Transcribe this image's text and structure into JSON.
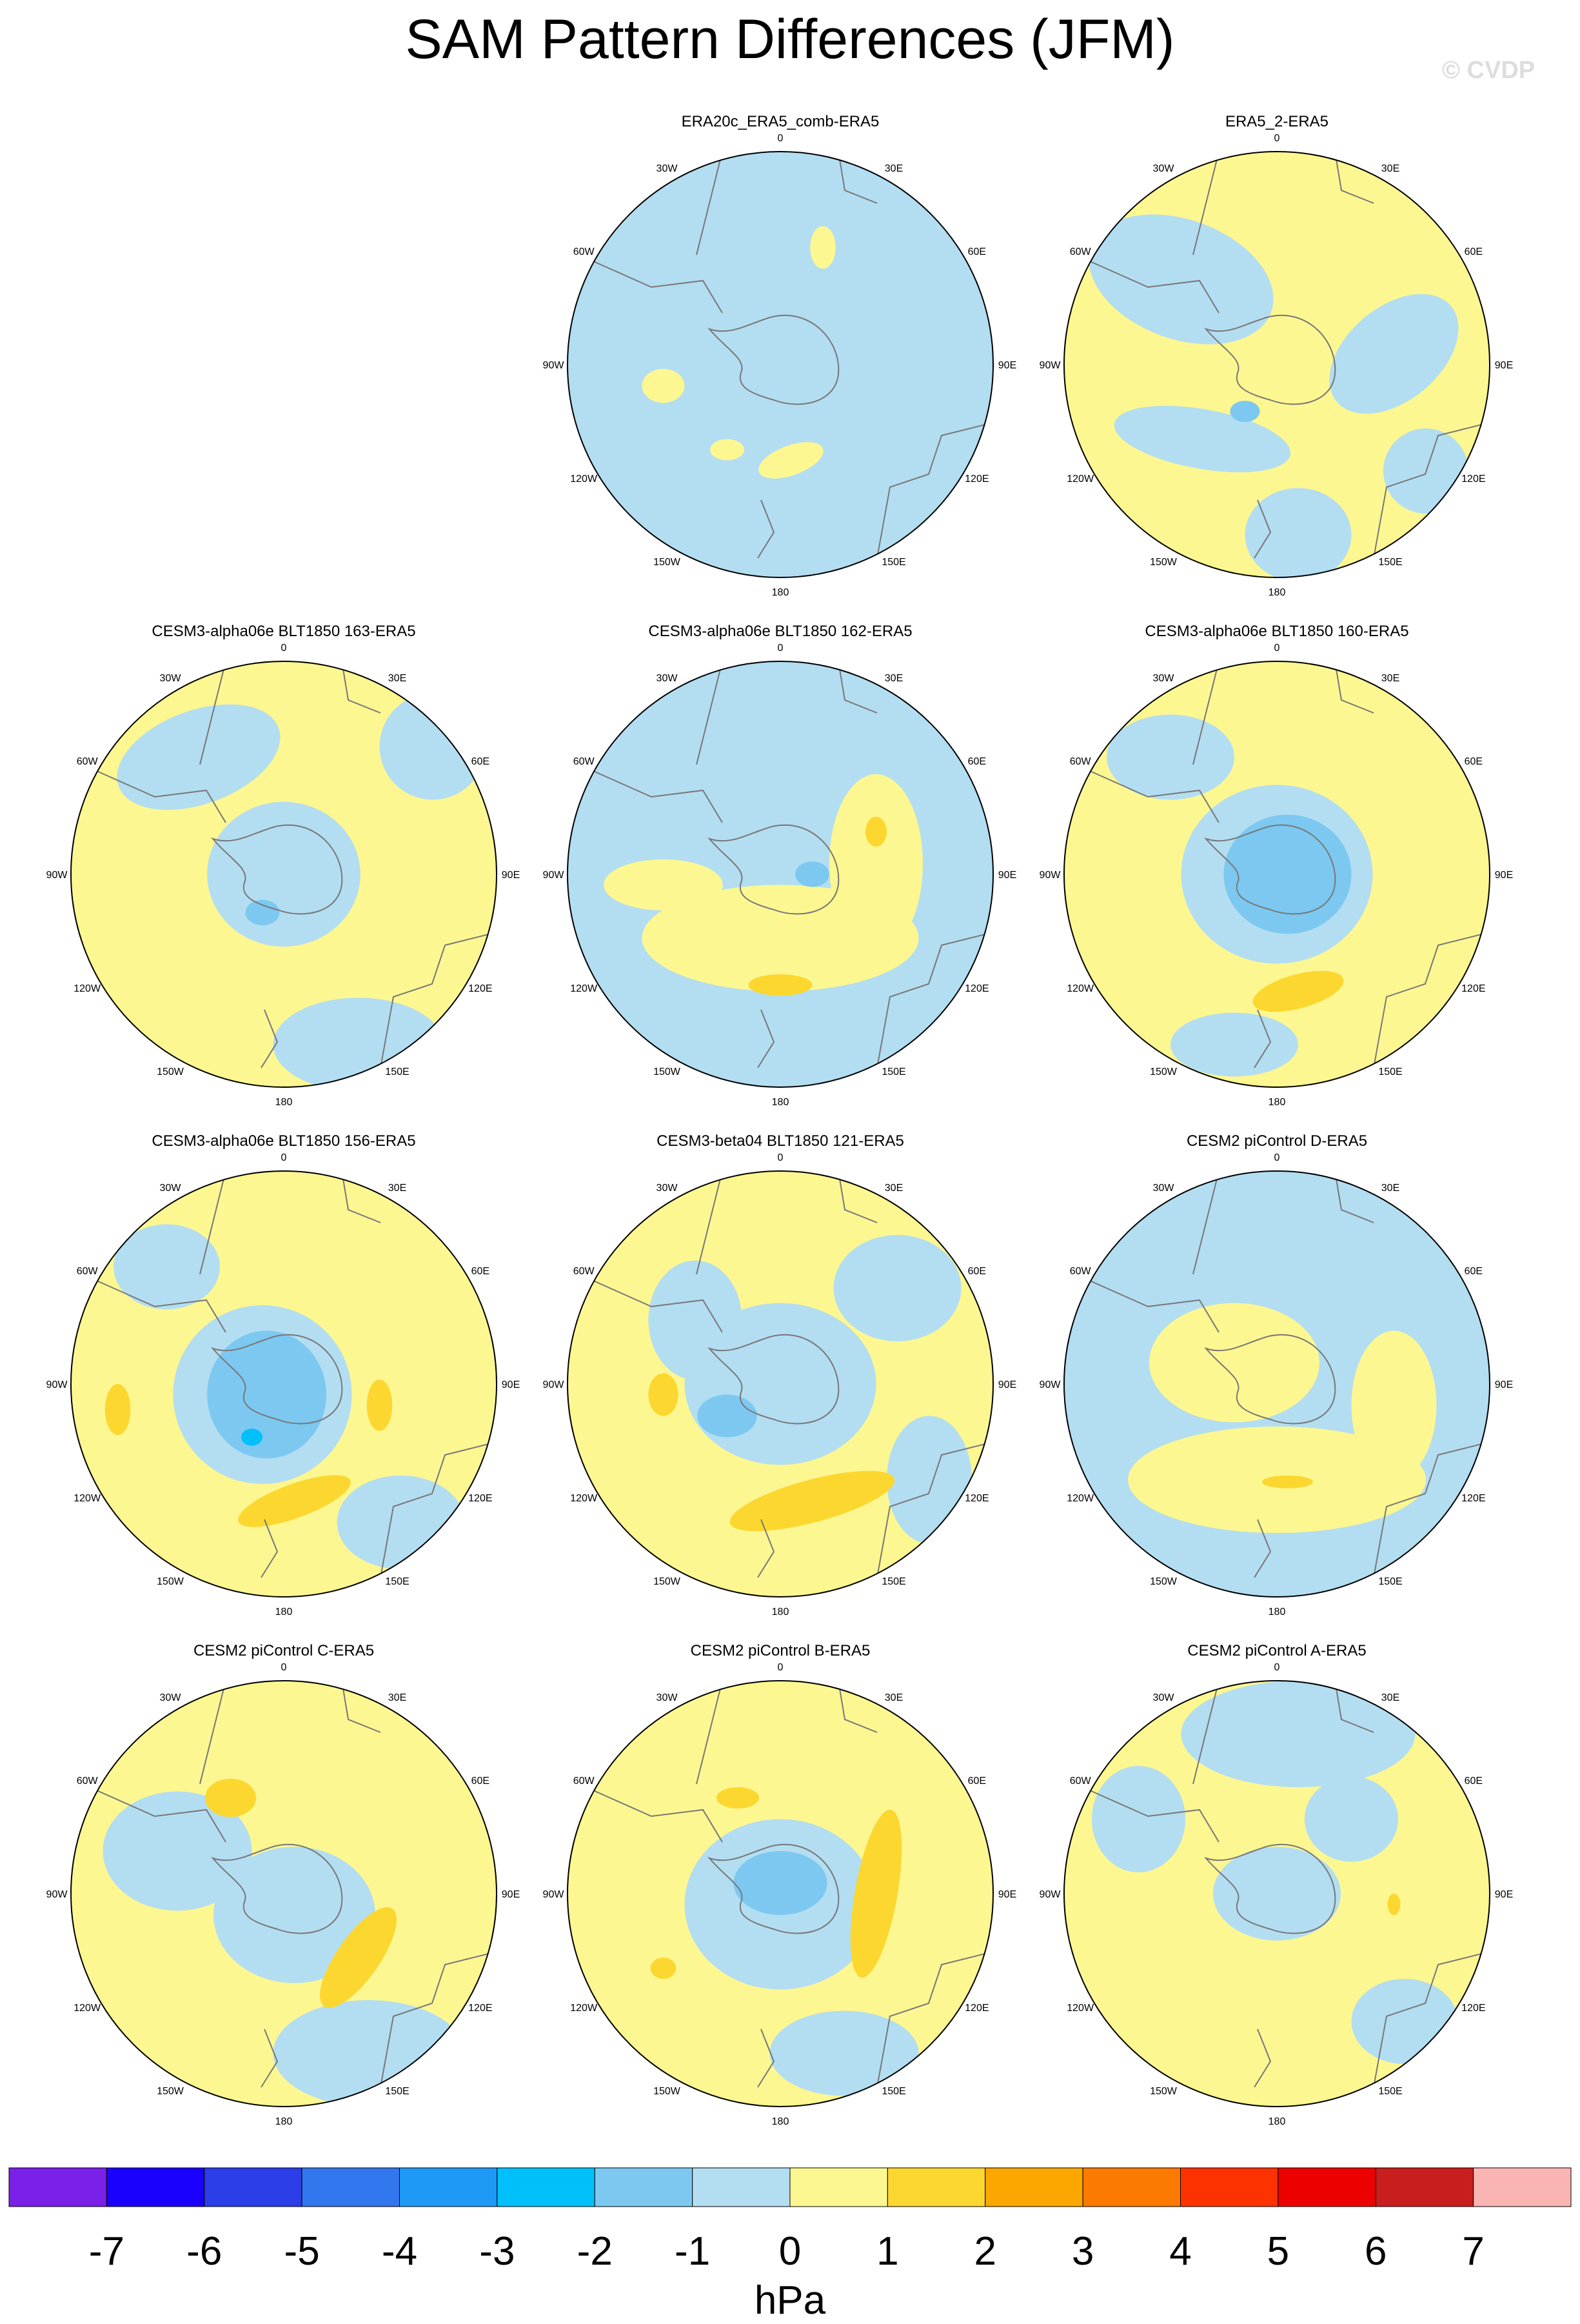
{
  "title": "SAM Pattern Differences (JFM)",
  "watermark": "© CVDP",
  "colors": {
    "ocean_base": "#b3ddf1",
    "coast": "#777777",
    "levels": [
      "#7a20e8",
      "#1a00ff",
      "#2b3ee8",
      "#3377ee",
      "#1e99f5",
      "#00c0fa",
      "#7cc8f0",
      "#b3ddf1",
      "#fdf791",
      "#fcd72f",
      "#fca700",
      "#fc7a00",
      "#fc3300",
      "#ec0000",
      "#c81e1e",
      "#fbb4b4"
    ]
  },
  "colorbar": {
    "labels": [
      "-7",
      "-6",
      "-5",
      "-4",
      "-3",
      "-2",
      "-1",
      "0",
      "1",
      "2",
      "3",
      "4",
      "5",
      "6",
      "7"
    ],
    "units": "hPa"
  },
  "lon_labels": [
    "0",
    "30E",
    "60E",
    "90E",
    "120E",
    "150E",
    "180",
    "150W",
    "120W",
    "90W",
    "60W",
    "30W"
  ],
  "panels": [
    {
      "title": "ERA20c_ERA5_comb-ERA5",
      "base": "blue",
      "blobs": [
        [
          "y",
          0.2,
          -0.55,
          0.06,
          0.1,
          0
        ],
        [
          "y",
          -0.55,
          0.1,
          0.1,
          0.08,
          0
        ],
        [
          "y",
          0.05,
          0.45,
          0.16,
          0.07,
          -20
        ],
        [
          "b",
          -0.05,
          0.2,
          0.16,
          0.07,
          10
        ],
        [
          "y",
          -0.25,
          0.4,
          0.08,
          0.05,
          0
        ]
      ]
    },
    {
      "title": "ERA5_2-ERA5",
      "base": "yellow",
      "blobs": [
        [
          "b",
          -0.45,
          -0.4,
          0.45,
          0.28,
          20
        ],
        [
          "b",
          0.55,
          -0.05,
          0.35,
          0.22,
          -40
        ],
        [
          "b",
          -0.35,
          0.35,
          0.42,
          0.14,
          10
        ],
        [
          "b",
          0.1,
          0.8,
          0.25,
          0.22,
          0
        ],
        [
          "b",
          0.7,
          0.5,
          0.2,
          0.2,
          0
        ],
        [
          "m",
          -0.15,
          0.22,
          0.07,
          0.05,
          0
        ]
      ]
    },
    {
      "title": "CESM3-alpha06e BLT1850 163-ERA5",
      "base": "yellow",
      "blobs": [
        [
          "b",
          0.0,
          0.0,
          0.36,
          0.34,
          0
        ],
        [
          "b",
          -0.4,
          -0.55,
          0.4,
          0.22,
          -20
        ],
        [
          "b",
          0.35,
          0.8,
          0.4,
          0.22,
          0
        ],
        [
          "b",
          0.7,
          -0.6,
          0.25,
          0.25,
          0
        ],
        [
          "m",
          -0.1,
          0.18,
          0.08,
          0.06,
          0
        ]
      ]
    },
    {
      "title": "CESM3-alpha06e BLT1850 162-ERA5",
      "base": "blue",
      "blobs": [
        [
          "y",
          0.0,
          0.3,
          0.65,
          0.25,
          0
        ],
        [
          "y",
          0.45,
          -0.05,
          0.22,
          0.42,
          0
        ],
        [
          "y",
          -0.55,
          0.05,
          0.28,
          0.12,
          0
        ],
        [
          "o",
          0.0,
          0.52,
          0.15,
          0.05,
          0
        ],
        [
          "o",
          0.45,
          -0.2,
          0.05,
          0.07,
          0
        ],
        [
          "m",
          0.15,
          0.0,
          0.08,
          0.06,
          0
        ]
      ]
    },
    {
      "title": "CESM3-alpha06e BLT1850 160-ERA5",
      "base": "yellow",
      "blobs": [
        [
          "b",
          0.0,
          0.0,
          0.45,
          0.42,
          0
        ],
        [
          "b",
          -0.5,
          -0.55,
          0.3,
          0.2,
          0
        ],
        [
          "b",
          -0.2,
          0.8,
          0.3,
          0.15,
          0
        ],
        [
          "m",
          0.05,
          0.0,
          0.3,
          0.28,
          0
        ],
        [
          "o",
          0.1,
          0.55,
          0.22,
          0.08,
          -15
        ]
      ]
    },
    {
      "title": "CESM3-alpha06e BLT1850 156-ERA5",
      "base": "yellow",
      "blobs": [
        [
          "b",
          -0.1,
          0.05,
          0.42,
          0.42,
          0
        ],
        [
          "b",
          -0.55,
          -0.55,
          0.25,
          0.2,
          0
        ],
        [
          "b",
          0.55,
          0.65,
          0.3,
          0.22,
          0
        ],
        [
          "m",
          -0.08,
          0.05,
          0.28,
          0.3,
          0
        ],
        [
          "c",
          -0.15,
          0.25,
          0.05,
          0.04,
          0
        ],
        [
          "o",
          -0.78,
          0.12,
          0.06,
          0.12,
          0
        ],
        [
          "o",
          0.45,
          0.1,
          0.06,
          0.12,
          0
        ],
        [
          "o",
          0.05,
          0.55,
          0.28,
          0.08,
          -20
        ]
      ]
    },
    {
      "title": "CESM3-beta04 BLT1850 121-ERA5",
      "base": "yellow",
      "blobs": [
        [
          "b",
          0.0,
          0.0,
          0.45,
          0.38,
          0
        ],
        [
          "b",
          -0.4,
          -0.3,
          0.22,
          0.28,
          0
        ],
        [
          "b",
          0.55,
          -0.45,
          0.3,
          0.25,
          0
        ],
        [
          "b",
          0.7,
          0.45,
          0.2,
          0.3,
          0
        ],
        [
          "m",
          -0.25,
          0.15,
          0.14,
          0.1,
          0
        ],
        [
          "o",
          -0.55,
          0.05,
          0.07,
          0.1,
          0
        ],
        [
          "o",
          0.15,
          0.55,
          0.4,
          0.1,
          -15
        ]
      ]
    },
    {
      "title": "CESM2 piControl D-ERA5",
      "base": "blue",
      "blobs": [
        [
          "y",
          0.0,
          0.45,
          0.7,
          0.25,
          0
        ],
        [
          "y",
          -0.2,
          -0.1,
          0.4,
          0.28,
          0
        ],
        [
          "y",
          0.55,
          0.1,
          0.2,
          0.35,
          0
        ],
        [
          "o",
          0.05,
          0.46,
          0.12,
          0.03,
          0
        ]
      ]
    },
    {
      "title": "CESM2 piControl C-ERA5",
      "base": "yellow",
      "blobs": [
        [
          "b",
          0.05,
          0.1,
          0.38,
          0.32,
          0
        ],
        [
          "b",
          -0.5,
          -0.2,
          0.35,
          0.28,
          0
        ],
        [
          "b",
          0.4,
          0.75,
          0.45,
          0.25,
          0
        ],
        [
          "o",
          -0.25,
          -0.45,
          0.12,
          0.09,
          0
        ],
        [
          "o",
          0.35,
          0.3,
          0.1,
          0.28,
          35
        ]
      ]
    },
    {
      "title": "CESM2 piControl B-ERA5",
      "base": "yellow",
      "blobs": [
        [
          "b",
          0.0,
          0.05,
          0.45,
          0.4,
          0
        ],
        [
          "b",
          0.3,
          0.75,
          0.35,
          0.2,
          0
        ],
        [
          "m",
          0.0,
          -0.05,
          0.22,
          0.15,
          0
        ],
        [
          "o",
          -0.2,
          -0.45,
          0.1,
          0.05,
          0
        ],
        [
          "o",
          0.45,
          0.0,
          0.1,
          0.4,
          10
        ],
        [
          "o",
          -0.55,
          0.35,
          0.06,
          0.05,
          0
        ]
      ]
    },
    {
      "title": "CESM2 piControl A-ERA5",
      "base": "yellow",
      "blobs": [
        [
          "b",
          0.1,
          -0.75,
          0.55,
          0.25,
          0
        ],
        [
          "b",
          0.35,
          -0.35,
          0.22,
          0.2,
          0
        ],
        [
          "b",
          -0.65,
          -0.35,
          0.22,
          0.25,
          0
        ],
        [
          "b",
          0.0,
          0.0,
          0.3,
          0.22,
          0
        ],
        [
          "b",
          0.6,
          0.6,
          0.25,
          0.2,
          0
        ],
        [
          "o",
          0.55,
          0.05,
          0.03,
          0.05,
          0
        ]
      ]
    }
  ]
}
